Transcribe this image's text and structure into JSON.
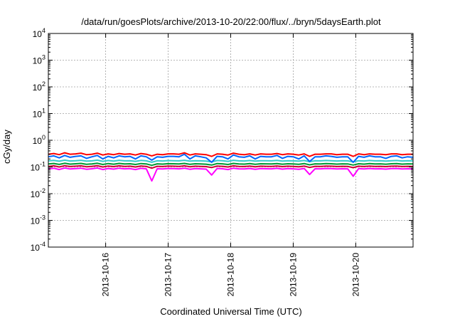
{
  "chart_data": {
    "type": "line",
    "title": "/data/run/goesPlots/archive/2013-10-20/22:00/flux/../bryn/5daysEarth.plot",
    "xlabel": "Coordinated Universal Time (UTC)",
    "ylabel": "cGy/day",
    "x_range": [
      "2013-10-15 02:00",
      "2013-10-20 22:00"
    ],
    "x_ticks": [
      "2013-10-16",
      "2013-10-17",
      "2013-10-18",
      "2013-10-19",
      "2013-10-20"
    ],
    "y_scale": "log",
    "ylim": [
      0.0001,
      10000
    ],
    "y_ticks": [
      {
        "mant": "10",
        "exp": "-4"
      },
      {
        "mant": "10",
        "exp": "-3"
      },
      {
        "mant": "10",
        "exp": "-2"
      },
      {
        "mant": "10",
        "exp": "-1"
      },
      {
        "mant": "10",
        "exp": "0"
      },
      {
        "mant": "10",
        "exp": "1"
      },
      {
        "mant": "10",
        "exp": "2"
      },
      {
        "mant": "10",
        "exp": "3"
      },
      {
        "mant": "10",
        "exp": "4"
      }
    ],
    "grid": true,
    "legend": "none",
    "series": [
      {
        "color": "#ff00ff",
        "values": [
          0.085,
          0.09,
          0.08,
          0.092,
          0.084,
          0.087,
          0.09,
          0.082,
          0.086,
          0.092,
          0.08,
          0.088,
          0.083,
          0.09,
          0.085,
          0.087,
          0.08,
          0.089,
          0.085,
          0.03,
          0.086,
          0.084,
          0.088,
          0.087,
          0.085,
          0.09,
          0.082,
          0.087,
          0.085,
          0.083,
          0.05,
          0.088,
          0.086,
          0.08,
          0.09,
          0.085,
          0.084,
          0.088,
          0.082,
          0.087,
          0.086,
          0.085,
          0.089,
          0.083,
          0.087,
          0.085,
          0.082,
          0.088,
          0.052,
          0.086,
          0.085,
          0.088,
          0.087,
          0.084,
          0.086,
          0.085,
          0.045,
          0.087,
          0.084,
          0.088,
          0.085,
          0.086,
          0.083,
          0.087,
          0.088,
          0.084,
          0.086,
          0.085
        ]
      },
      {
        "color": "#cc0033",
        "values": [
          0.105,
          0.11,
          0.1,
          0.112,
          0.104,
          0.107,
          0.11,
          0.102,
          0.106,
          0.112,
          0.1,
          0.108,
          0.103,
          0.11,
          0.105,
          0.107,
          0.1,
          0.109,
          0.105,
          0.09,
          0.106,
          0.104,
          0.108,
          0.107,
          0.105,
          0.11,
          0.102,
          0.107,
          0.105,
          0.103,
          0.095,
          0.108,
          0.106,
          0.1,
          0.11,
          0.105,
          0.104,
          0.108,
          0.102,
          0.107,
          0.106,
          0.105,
          0.109,
          0.103,
          0.107,
          0.105,
          0.102,
          0.108,
          0.096,
          0.106,
          0.105,
          0.108,
          0.107,
          0.104,
          0.106,
          0.105,
          0.094,
          0.107,
          0.104,
          0.108,
          0.105,
          0.106,
          0.103,
          0.107,
          0.108,
          0.104,
          0.106,
          0.105
        ]
      },
      {
        "color": "#009933",
        "values": [
          0.13,
          0.135,
          0.125,
          0.138,
          0.128,
          0.132,
          0.136,
          0.126,
          0.13,
          0.138,
          0.124,
          0.134,
          0.127,
          0.136,
          0.13,
          0.132,
          0.124,
          0.134,
          0.13,
          0.115,
          0.131,
          0.128,
          0.133,
          0.132,
          0.13,
          0.136,
          0.126,
          0.132,
          0.13,
          0.127,
          0.118,
          0.134,
          0.131,
          0.124,
          0.136,
          0.13,
          0.128,
          0.134,
          0.126,
          0.132,
          0.131,
          0.13,
          0.134,
          0.127,
          0.132,
          0.13,
          0.126,
          0.134,
          0.12,
          0.131,
          0.13,
          0.134,
          0.132,
          0.128,
          0.131,
          0.13,
          0.118,
          0.132,
          0.128,
          0.134,
          0.13,
          0.131,
          0.127,
          0.132,
          0.134,
          0.128,
          0.131,
          0.13
        ]
      },
      {
        "color": "#33cccc",
        "values": [
          0.17,
          0.176,
          0.164,
          0.18,
          0.168,
          0.172,
          0.178,
          0.165,
          0.17,
          0.18,
          0.162,
          0.175,
          0.166,
          0.178,
          0.17,
          0.172,
          0.162,
          0.176,
          0.17,
          0.15,
          0.171,
          0.168,
          0.174,
          0.172,
          0.17,
          0.178,
          0.165,
          0.172,
          0.17,
          0.166,
          0.155,
          0.175,
          0.171,
          0.162,
          0.178,
          0.17,
          0.168,
          0.175,
          0.165,
          0.172,
          0.171,
          0.17,
          0.176,
          0.166,
          0.172,
          0.17,
          0.165,
          0.175,
          0.158,
          0.171,
          0.17,
          0.175,
          0.172,
          0.168,
          0.171,
          0.17,
          0.155,
          0.172,
          0.168,
          0.175,
          0.17,
          0.171,
          0.166,
          0.172,
          0.175,
          0.168,
          0.171,
          0.17
        ]
      },
      {
        "color": "#0066ff",
        "values": [
          0.24,
          0.26,
          0.22,
          0.27,
          0.23,
          0.25,
          0.26,
          0.21,
          0.24,
          0.27,
          0.2,
          0.25,
          0.22,
          0.26,
          0.24,
          0.25,
          0.2,
          0.26,
          0.24,
          0.18,
          0.24,
          0.23,
          0.25,
          0.25,
          0.24,
          0.3,
          0.2,
          0.26,
          0.24,
          0.22,
          0.15,
          0.25,
          0.24,
          0.2,
          0.28,
          0.24,
          0.23,
          0.26,
          0.2,
          0.25,
          0.24,
          0.24,
          0.27,
          0.21,
          0.25,
          0.24,
          0.2,
          0.26,
          0.16,
          0.24,
          0.24,
          0.26,
          0.25,
          0.23,
          0.24,
          0.24,
          0.15,
          0.25,
          0.23,
          0.26,
          0.24,
          0.24,
          0.21,
          0.25,
          0.26,
          0.22,
          0.24,
          0.23
        ]
      },
      {
        "color": "#ff0000",
        "values": [
          0.3,
          0.32,
          0.29,
          0.34,
          0.3,
          0.31,
          0.33,
          0.29,
          0.3,
          0.33,
          0.28,
          0.31,
          0.29,
          0.32,
          0.3,
          0.31,
          0.28,
          0.32,
          0.3,
          0.26,
          0.3,
          0.29,
          0.31,
          0.31,
          0.3,
          0.34,
          0.28,
          0.31,
          0.3,
          0.29,
          0.25,
          0.31,
          0.3,
          0.28,
          0.33,
          0.3,
          0.29,
          0.31,
          0.28,
          0.31,
          0.3,
          0.3,
          0.32,
          0.29,
          0.31,
          0.3,
          0.28,
          0.31,
          0.25,
          0.3,
          0.3,
          0.31,
          0.31,
          0.29,
          0.3,
          0.3,
          0.25,
          0.31,
          0.29,
          0.31,
          0.3,
          0.3,
          0.29,
          0.31,
          0.31,
          0.29,
          0.3,
          0.3
        ]
      }
    ]
  }
}
